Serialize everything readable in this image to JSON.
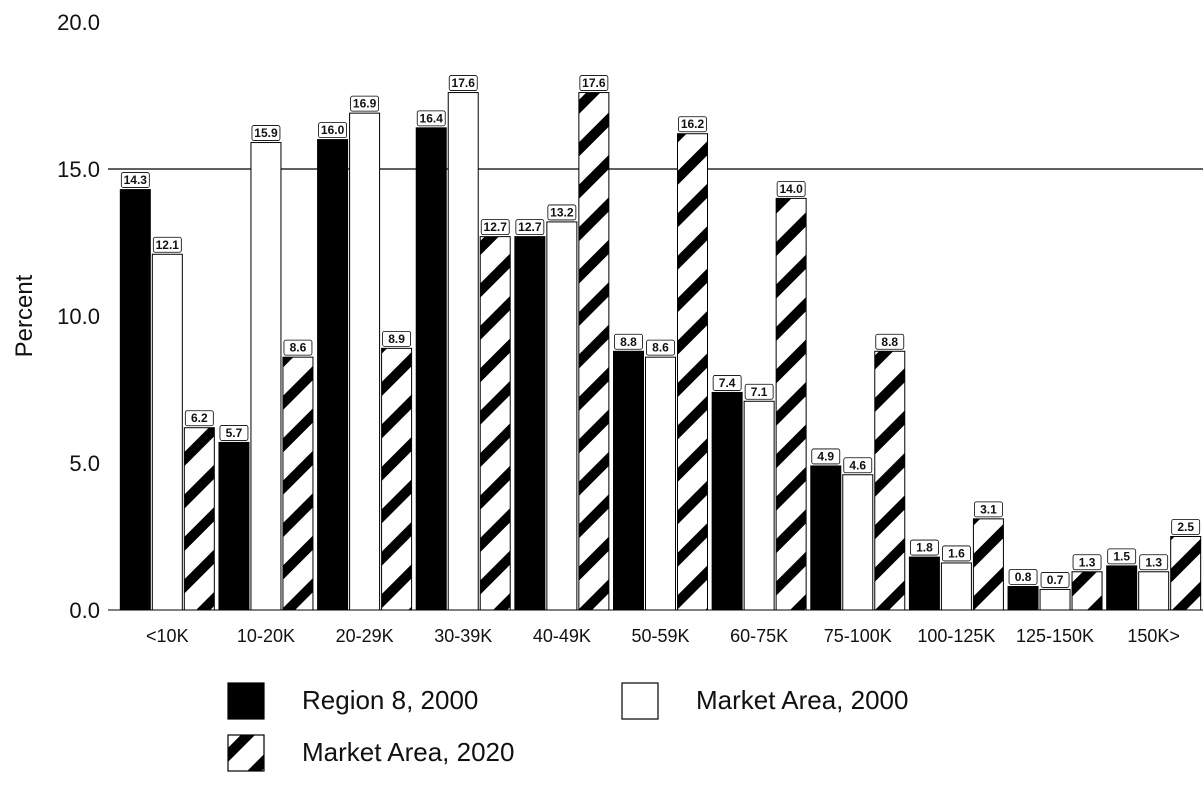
{
  "chart_data": {
    "type": "bar",
    "title": "",
    "xlabel": "",
    "ylabel": "Percent",
    "ylim": [
      0,
      20
    ],
    "yticks": [
      "0.0",
      "5.0",
      "10.0",
      "15.0",
      "20.0"
    ],
    "reference_line": 15.0,
    "categories": [
      "<10K",
      "10-20K",
      "20-29K",
      "30-39K",
      "40-49K",
      "50-59K",
      "60-75K",
      "75-100K",
      "100-125K",
      "125-150K",
      "150K>"
    ],
    "series": [
      {
        "name": "Region 8, 2000",
        "pattern": "solid",
        "color": "#000000",
        "values": [
          14.3,
          5.7,
          16.0,
          16.4,
          12.7,
          8.8,
          7.4,
          4.9,
          1.8,
          0.8,
          1.5
        ],
        "labels": [
          "14.3",
          "5.7",
          "16.0",
          "16.4",
          "12.7",
          "8.8",
          "7.4",
          "4.9",
          "1.8",
          "0.8",
          "1.5"
        ]
      },
      {
        "name": "Market Area, 2000",
        "pattern": "hollow",
        "color": "#ffffff",
        "values": [
          12.1,
          15.9,
          16.9,
          17.6,
          13.2,
          8.6,
          7.1,
          4.6,
          1.6,
          0.7,
          1.3
        ],
        "labels": [
          "12.1",
          "15.9",
          "16.9",
          "17.6",
          "13.2",
          "8.6",
          "7.1",
          "4.6",
          "1.6",
          "0.7",
          "1.3"
        ]
      },
      {
        "name": "Market Area, 2020",
        "pattern": "diagonal-stripes",
        "color": "#000000",
        "values": [
          6.2,
          8.6,
          8.9,
          12.7,
          17.6,
          16.2,
          14.0,
          8.8,
          3.1,
          1.3,
          2.5
        ],
        "labels": [
          "6.2",
          "8.6",
          "8.9",
          "12.7",
          "17.6",
          "16.2",
          "14.0",
          "8.8",
          "3.1",
          "1.3",
          "2.5"
        ]
      }
    ],
    "legend_position": "bottom",
    "grid": false
  }
}
